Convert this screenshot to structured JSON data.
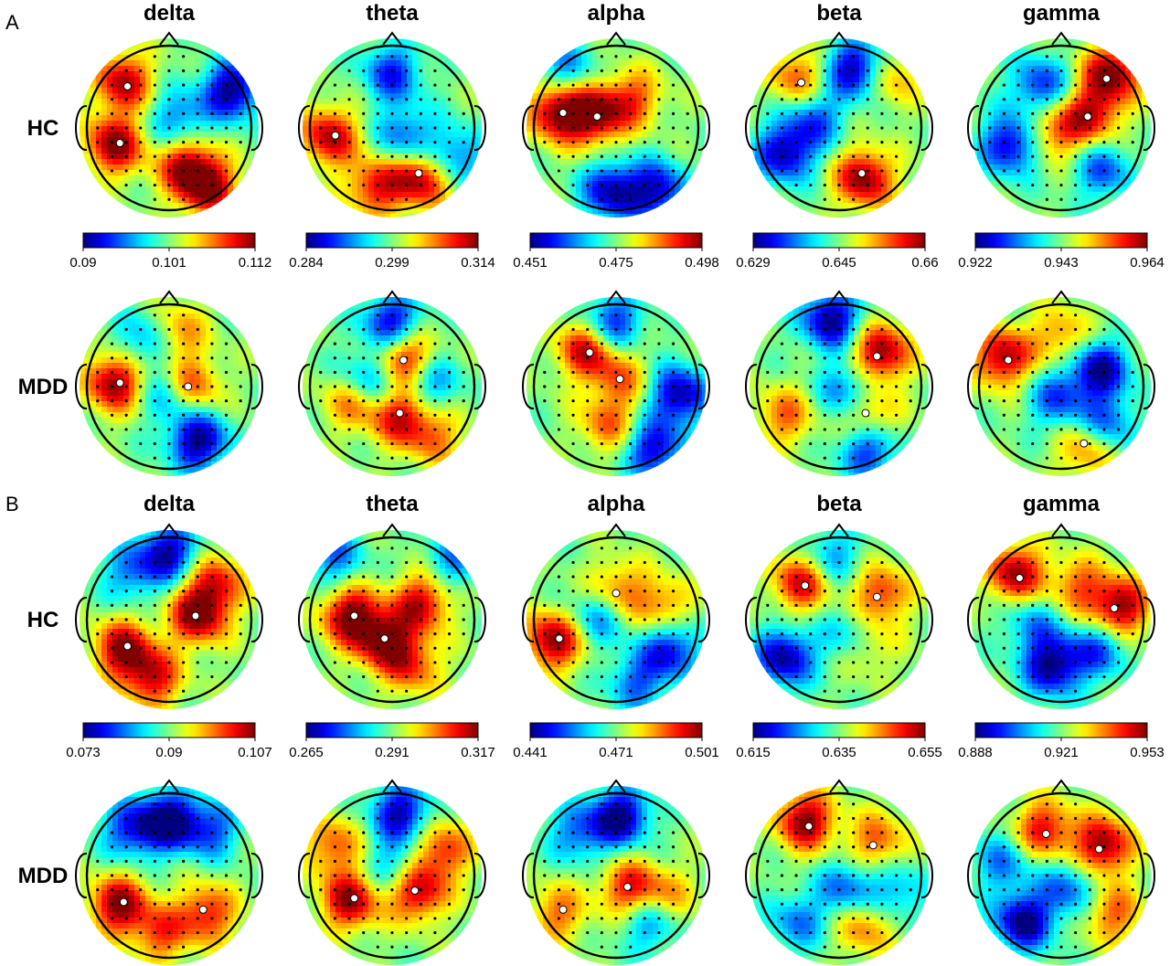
{
  "chart_data": [
    {
      "panel": "A",
      "type": "heatmap",
      "bands": [
        "delta",
        "theta",
        "alpha",
        "beta",
        "gamma"
      ],
      "groups": [
        "HC",
        "MDD"
      ],
      "colorbars": [
        {
          "band": "delta",
          "min": "0.09",
          "mid": "0.101",
          "max": "0.112"
        },
        {
          "band": "theta",
          "min": "0.284",
          "mid": "0.299",
          "max": "0.314"
        },
        {
          "band": "alpha",
          "min": "0.451",
          "mid": "0.475",
          "max": "0.498"
        },
        {
          "band": "beta",
          "min": "0.629",
          "mid": "0.645",
          "max": "0.66"
        },
        {
          "band": "gamma",
          "min": "0.922",
          "mid": "0.943",
          "max": "0.964"
        }
      ],
      "maps": [
        [
          {
            "band": "delta",
            "group": "HC",
            "hot": [
              [
                -0.55,
                0.55,
                0.9
              ],
              [
                -0.65,
                -0.2,
                1
              ],
              [
                0.45,
                -0.7,
                0.95
              ],
              [
                0.2,
                -0.45,
                0.8
              ]
            ],
            "cold": [
              [
                0.75,
                0.45,
                1
              ],
              [
                0.1,
                0.1,
                0.55
              ]
            ]
          },
          {
            "band": "theta",
            "group": "HC",
            "hot": [
              [
                -0.75,
                -0.1,
                0.9
              ],
              [
                0.35,
                -0.6,
                0.95
              ],
              [
                -0.2,
                -0.7,
                0.75
              ]
            ],
            "cold": [
              [
                0.0,
                0.65,
                0.7
              ],
              [
                0.15,
                -0.1,
                0.6
              ],
              [
                0.75,
                -0.35,
                0.6
              ]
            ]
          },
          {
            "band": "alpha",
            "group": "HC",
            "hot": [
              [
                -0.7,
                0.2,
                1
              ],
              [
                -0.25,
                0.15,
                0.95
              ],
              [
                0.2,
                0.35,
                0.6
              ]
            ],
            "cold": [
              [
                -0.05,
                -0.75,
                0.9
              ],
              [
                0.5,
                -0.75,
                0.85
              ],
              [
                -0.6,
                0.7,
                0.5
              ]
            ]
          },
          {
            "band": "beta",
            "group": "HC",
            "hot": [
              [
                0.3,
                -0.6,
                1
              ],
              [
                -0.5,
                0.6,
                0.6
              ],
              [
                0.6,
                0.6,
                0.5
              ]
            ],
            "cold": [
              [
                0.2,
                0.7,
                1
              ],
              [
                -0.65,
                -0.3,
                0.9
              ],
              [
                -0.3,
                0.1,
                0.6
              ]
            ]
          },
          {
            "band": "gamma",
            "group": "HC",
            "hot": [
              [
                0.6,
                0.65,
                1
              ],
              [
                0.35,
                0.15,
                0.8
              ],
              [
                -0.1,
                -0.05,
                0.6
              ]
            ],
            "cold": [
              [
                -0.6,
                -0.2,
                0.9
              ],
              [
                -0.25,
                0.5,
                0.7
              ],
              [
                0.5,
                -0.5,
                0.6
              ]
            ]
          }
        ],
        [
          {
            "band": "delta",
            "group": "MDD",
            "hot": [
              [
                -0.65,
                0.05,
                1
              ],
              [
                0.25,
                0.0,
                0.75
              ],
              [
                0.1,
                0.65,
                0.5
              ]
            ],
            "cold": [
              [
                0.35,
                -0.65,
                1
              ],
              [
                0.0,
                -0.1,
                0.55
              ],
              [
                -0.3,
                0.55,
                0.5
              ]
            ]
          },
          {
            "band": "theta",
            "group": "MDD",
            "hot": [
              [
                0.15,
                0.35,
                0.95
              ],
              [
                0.1,
                -0.35,
                0.8
              ],
              [
                -0.45,
                -0.15,
                0.7
              ],
              [
                0.5,
                -0.6,
                0.5
              ]
            ],
            "cold": [
              [
                0.0,
                0.75,
                0.9
              ],
              [
                -0.3,
                0.05,
                0.75
              ],
              [
                0.45,
                0.05,
                0.55
              ]
            ]
          },
          {
            "band": "alpha",
            "group": "MDD",
            "hot": [
              [
                -0.35,
                0.45,
                0.9
              ],
              [
                0.05,
                0.1,
                0.5
              ],
              [
                -0.1,
                -0.45,
                0.55
              ]
            ],
            "cold": [
              [
                0.75,
                -0.1,
                0.95
              ],
              [
                0.45,
                -0.75,
                0.85
              ],
              [
                -0.05,
                0.75,
                0.8
              ]
            ]
          },
          {
            "band": "beta",
            "group": "MDD",
            "hot": [
              [
                0.5,
                0.4,
                1
              ],
              [
                0.35,
                -0.35,
                0.6
              ],
              [
                -0.65,
                -0.35,
                0.55
              ]
            ],
            "cold": [
              [
                -0.1,
                0.8,
                1
              ],
              [
                0.1,
                -0.05,
                0.6
              ],
              [
                0.35,
                -0.75,
                0.75
              ]
            ]
          },
          {
            "band": "gamma",
            "group": "MDD",
            "hot": [
              [
                -0.7,
                0.35,
                0.95
              ],
              [
                0.3,
                -0.75,
                0.55
              ],
              [
                0.0,
                0.6,
                0.5
              ]
            ],
            "cold": [
              [
                0.45,
                0.2,
                0.95
              ],
              [
                -0.05,
                -0.15,
                0.6
              ],
              [
                0.55,
                -0.45,
                0.6
              ]
            ]
          }
        ]
      ]
    },
    {
      "panel": "B",
      "type": "heatmap",
      "bands": [
        "delta",
        "theta",
        "alpha",
        "beta",
        "gamma"
      ],
      "groups": [
        "HC",
        "MDD"
      ],
      "colorbars": [
        {
          "band": "delta",
          "min": "0.073",
          "mid": "0.09",
          "max": "0.107"
        },
        {
          "band": "theta",
          "min": "0.265",
          "mid": "0.291",
          "max": "0.317"
        },
        {
          "band": "alpha",
          "min": "0.441",
          "mid": "0.471",
          "max": "0.501"
        },
        {
          "band": "beta",
          "min": "0.615",
          "mid": "0.635",
          "max": "0.655"
        },
        {
          "band": "gamma",
          "min": "0.888",
          "mid": "0.921",
          "max": "0.953"
        }
      ],
      "maps": [
        [
          {
            "band": "delta",
            "group": "HC",
            "hot": [
              [
                0.35,
                0.05,
                1
              ],
              [
                -0.55,
                -0.35,
                0.95
              ],
              [
                -0.2,
                -0.7,
                0.8
              ],
              [
                0.55,
                0.45,
                0.7
              ]
            ],
            "cold": [
              [
                0.0,
                0.8,
                0.9
              ],
              [
                -0.45,
                0.55,
                0.5
              ]
            ]
          },
          {
            "band": "theta",
            "group": "HC",
            "hot": [
              [
                -0.5,
                0.05,
                1
              ],
              [
                -0.1,
                -0.25,
                0.95
              ],
              [
                0.35,
                0.2,
                0.85
              ],
              [
                0.25,
                -0.55,
                0.6
              ]
            ],
            "cold": [
              [
                -0.7,
                0.75,
                0.55
              ],
              [
                0.75,
                0.7,
                0.5
              ]
            ]
          },
          {
            "band": "alpha",
            "group": "HC",
            "hot": [
              [
                -0.75,
                -0.25,
                1
              ],
              [
                0.0,
                0.35,
                0.6
              ],
              [
                0.55,
                0.15,
                0.55
              ]
            ],
            "cold": [
              [
                0.65,
                -0.35,
                0.8
              ],
              [
                -0.2,
                0.05,
                0.55
              ],
              [
                0.25,
                -0.75,
                0.55
              ]
            ]
          },
          {
            "band": "beta",
            "group": "HC",
            "hot": [
              [
                -0.45,
                0.45,
                0.85
              ],
              [
                0.5,
                0.3,
                0.7
              ],
              [
                0.3,
                -0.3,
                0.55
              ]
            ],
            "cold": [
              [
                -0.65,
                -0.45,
                0.95
              ],
              [
                0.15,
                -0.2,
                0.6
              ],
              [
                -0.1,
                0.75,
                0.5
              ]
            ]
          },
          {
            "band": "gamma",
            "group": "HC",
            "hot": [
              [
                -0.55,
                0.55,
                0.95
              ],
              [
                0.7,
                0.15,
                1
              ],
              [
                0.2,
                0.4,
                0.55
              ]
            ],
            "cold": [
              [
                -0.1,
                -0.55,
                1
              ],
              [
                0.45,
                -0.35,
                0.6
              ],
              [
                -0.35,
                -0.05,
                0.45
              ]
            ]
          }
        ],
        [
          {
            "band": "delta",
            "group": "MDD",
            "hot": [
              [
                -0.6,
                -0.35,
                1
              ],
              [
                0.45,
                -0.45,
                0.75
              ],
              [
                -0.1,
                -0.7,
                0.6
              ]
            ],
            "cold": [
              [
                0.0,
                0.65,
                1
              ],
              [
                -0.45,
                0.55,
                0.7
              ],
              [
                0.5,
                0.55,
                0.6
              ]
            ]
          },
          {
            "band": "theta",
            "group": "MDD",
            "hot": [
              [
                -0.5,
                -0.3,
                0.95
              ],
              [
                0.3,
                -0.2,
                0.9
              ],
              [
                0.6,
                0.3,
                0.7
              ],
              [
                -0.7,
                0.35,
                0.6
              ]
            ],
            "cold": [
              [
                0.1,
                0.75,
                0.9
              ],
              [
                0.0,
                0.1,
                0.45
              ]
            ]
          },
          {
            "band": "alpha",
            "group": "MDD",
            "hot": [
              [
                0.15,
                -0.15,
                0.75
              ],
              [
                -0.7,
                -0.45,
                0.55
              ],
              [
                0.6,
                -0.25,
                0.45
              ]
            ],
            "cold": [
              [
                0.05,
                0.7,
                1
              ],
              [
                -0.45,
                0.5,
                0.55
              ],
              [
                0.4,
                -0.55,
                0.55
              ]
            ]
          },
          {
            "band": "beta",
            "group": "MDD",
            "hot": [
              [
                -0.4,
                0.65,
                1
              ],
              [
                0.45,
                0.4,
                0.6
              ],
              [
                0.3,
                -0.6,
                0.55
              ]
            ],
            "cold": [
              [
                0.1,
                -0.15,
                0.6
              ],
              [
                -0.5,
                -0.55,
                0.5
              ],
              [
                0.7,
                -0.2,
                0.45
              ]
            ]
          },
          {
            "band": "gamma",
            "group": "MDD",
            "hot": [
              [
                0.5,
                0.35,
                1
              ],
              [
                -0.2,
                0.55,
                0.8
              ],
              [
                0.6,
                -0.45,
                0.6
              ]
            ],
            "cold": [
              [
                -0.45,
                -0.55,
                1
              ],
              [
                0.1,
                -0.15,
                0.6
              ],
              [
                -0.7,
                0.15,
                0.5
              ]
            ]
          }
        ]
      ]
    }
  ]
}
